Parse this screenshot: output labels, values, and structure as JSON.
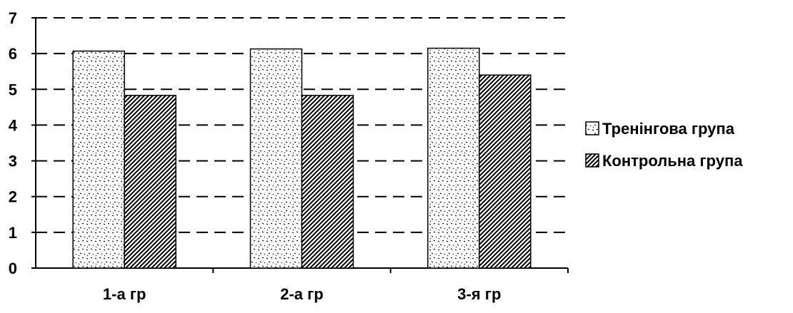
{
  "chart_data": {
    "type": "bar",
    "title": "",
    "xlabel": "",
    "ylabel": "",
    "categories": [
      "1-а гр",
      "2-а гр",
      "3-я гр"
    ],
    "series": [
      {
        "name": "Тренінгова група",
        "values": [
          6.07,
          6.13,
          6.15
        ]
      },
      {
        "name": "Контрольна група",
        "values": [
          4.83,
          4.83,
          5.4
        ]
      }
    ],
    "ylim": [
      0,
      7
    ],
    "yticks": [
      "0",
      "1",
      "2",
      "3",
      "4",
      "5",
      "6",
      "7"
    ],
    "grid": true,
    "grid_style": "dashed",
    "legend_position": "right",
    "colors": {
      "bars": "#ffffff",
      "ink": "#000000"
    }
  }
}
